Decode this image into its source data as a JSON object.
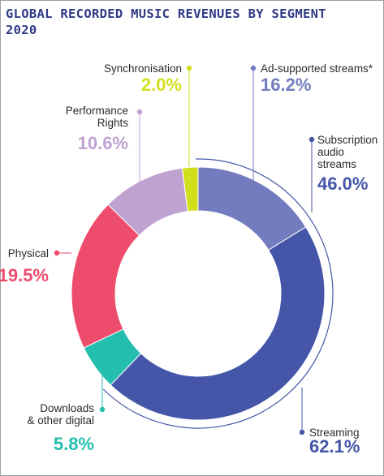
{
  "chart_data": {
    "type": "pie",
    "title_lines": [
      "GLOBAL RECORDED MUSIC REVENUES BY SEGMENT",
      "2020"
    ],
    "slices": [
      {
        "label_lines": [
          "Ad-supported streams*"
        ],
        "value_text": "16.2%",
        "value": 16.2,
        "color": "#727cbf"
      },
      {
        "label_lines": [
          "Subscription",
          "audio",
          "streams"
        ],
        "value_text": "46.0%",
        "value": 46.0,
        "color": "#4556a9"
      },
      {
        "label_lines": [
          "Downloads",
          "& other digital"
        ],
        "value_text": "5.8%",
        "value": 5.8,
        "color": "#24beae"
      },
      {
        "label_lines": [
          "Physical"
        ],
        "value_text": "19.5%",
        "value": 19.5,
        "color": "#ee4c6c"
      },
      {
        "label_lines": [
          "Performance",
          "Rights"
        ],
        "value_text": "10.6%",
        "value": 10.6,
        "color": "#c0a2d0"
      },
      {
        "label_lines": [
          "Synchronisation"
        ],
        "value_text": "2.0%",
        "value": 2.0,
        "color": "#d2df1c"
      }
    ],
    "group": {
      "label_lines": [
        "Streaming"
      ],
      "value_text": "62.1%",
      "value": 62.1,
      "color": "#4556a9"
    },
    "colors": {
      "title": "#2f3a86",
      "label": "#2b2b2b"
    }
  }
}
